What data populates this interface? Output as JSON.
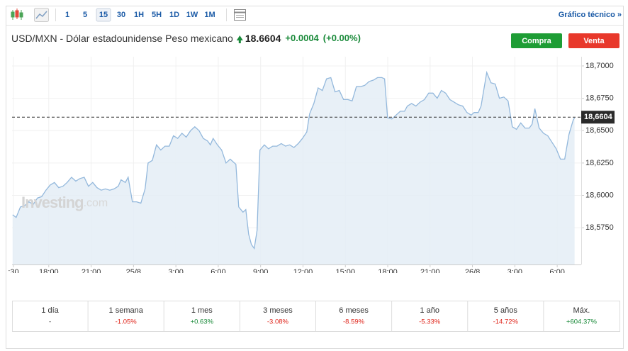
{
  "toolbar": {
    "intervals": [
      "1",
      "5",
      "15",
      "30",
      "1H",
      "5H",
      "1D",
      "1W",
      "1M"
    ],
    "selected_index": 2,
    "link": "Gráfico técnico »"
  },
  "header": {
    "instrument": "USD/MXN - Dólar estadounidense Peso mexicano",
    "price": "18.6604",
    "change": "+0.0004",
    "change_pct": "(+0.00%)",
    "buy": "Compra",
    "sell": "Venta"
  },
  "chart_data": {
    "type": "area",
    "watermark": [
      "Investing",
      ".com"
    ],
    "x": [
      15.44,
      15.69,
      15.99,
      16.29,
      16.59,
      16.9,
      17.2,
      17.5,
      17.8,
      18.1,
      18.4,
      18.7,
      19.0,
      19.3,
      19.61,
      19.91,
      20.21,
      20.51,
      20.81,
      21.11,
      21.41,
      21.71,
      22.01,
      22.32,
      22.62,
      22.92,
      23.12,
      23.42,
      23.62,
      23.92,
      24.22,
      24.52,
      24.82,
      25.03,
      25.33,
      25.63,
      25.93,
      26.23,
      26.53,
      26.83,
      27.13,
      27.43,
      27.73,
      28.04,
      28.34,
      28.64,
      28.94,
      29.24,
      29.44,
      29.64,
      29.94,
      30.24,
      30.55,
      30.85,
      31.05,
      31.25,
      31.45,
      31.75,
      31.95,
      32.15,
      32.35,
      32.55,
      32.75,
      32.95,
      33.26,
      33.56,
      33.86,
      34.16,
      34.46,
      34.76,
      35.06,
      35.36,
      35.66,
      35.96,
      36.27,
      36.47,
      36.77,
      37.07,
      37.37,
      37.67,
      37.97,
      38.27,
      38.57,
      38.87,
      39.18,
      39.48,
      39.78,
      40.08,
      40.38,
      40.68,
      40.98,
      41.28,
      41.58,
      41.78,
      41.99,
      42.29,
      42.59,
      42.89,
      43.19,
      43.39,
      43.69,
      43.99,
      44.29,
      44.6,
      44.9,
      45.2,
      45.5,
      45.8,
      46.1,
      46.4,
      46.7,
      47.0,
      47.31,
      47.61,
      47.91,
      48.11,
      48.41,
      48.61,
      48.81,
      49.01,
      49.31,
      49.61,
      49.91,
      50.22,
      50.52,
      50.82,
      51.12,
      51.42,
      51.72,
      52.02,
      52.22,
      52.42,
      52.72,
      53.03,
      53.33,
      53.63,
      53.93,
      54.23,
      54.53,
      54.83,
      55.13,
      55.23
    ],
    "values": [
      18.585,
      18.583,
      18.591,
      18.592,
      18.595,
      18.593,
      18.598,
      18.599,
      18.604,
      18.608,
      18.61,
      18.606,
      18.607,
      18.61,
      18.614,
      18.611,
      18.613,
      18.614,
      18.607,
      18.61,
      18.606,
      18.604,
      18.605,
      18.604,
      18.605,
      18.607,
      18.612,
      18.61,
      18.614,
      18.595,
      18.595,
      18.594,
      18.605,
      18.625,
      18.627,
      18.639,
      18.635,
      18.638,
      18.638,
      18.646,
      18.644,
      18.648,
      18.645,
      18.65,
      18.653,
      18.65,
      18.644,
      18.642,
      18.639,
      18.644,
      18.639,
      18.635,
      18.625,
      18.628,
      18.626,
      18.624,
      18.591,
      18.587,
      18.589,
      18.57,
      18.562,
      18.559,
      18.573,
      18.635,
      18.639,
      18.636,
      18.638,
      18.638,
      18.64,
      18.638,
      18.639,
      18.637,
      18.64,
      18.644,
      18.649,
      18.663,
      18.671,
      18.683,
      18.681,
      18.69,
      18.691,
      18.68,
      18.681,
      18.674,
      18.674,
      18.673,
      18.684,
      18.684,
      18.685,
      18.688,
      18.689,
      18.691,
      18.691,
      18.69,
      18.66,
      18.659,
      18.662,
      18.665,
      18.665,
      18.669,
      18.671,
      18.669,
      18.672,
      18.674,
      18.679,
      18.679,
      18.675,
      18.681,
      18.679,
      18.674,
      18.672,
      18.67,
      18.669,
      18.664,
      18.662,
      18.664,
      18.664,
      18.669,
      18.682,
      18.695,
      18.687,
      18.686,
      18.675,
      18.676,
      18.673,
      18.653,
      18.651,
      18.656,
      18.652,
      18.652,
      18.655,
      18.667,
      18.652,
      18.648,
      18.646,
      18.641,
      18.636,
      18.628,
      18.628,
      18.647,
      18.658,
      18.66
    ],
    "color": "#93b8dc",
    "fill_color": "#e4edf6",
    "last_label": {
      "value": 18.6604,
      "label": "18,6604"
    },
    "xlim": [
      15.4,
      55.7
    ],
    "ylim": [
      18.5466,
      18.7071
    ],
    "xticks": [
      {
        "value": 15.5,
        "label": ":30"
      },
      {
        "value": 18,
        "label": "18:00"
      },
      {
        "value": 21,
        "label": "21:00"
      },
      {
        "value": 24,
        "label": "25/8"
      },
      {
        "value": 27,
        "label": "3:00"
      },
      {
        "value": 30,
        "label": "6:00"
      },
      {
        "value": 33,
        "label": "9:00"
      },
      {
        "value": 36,
        "label": "12:00"
      },
      {
        "value": 39,
        "label": "15:00"
      },
      {
        "value": 42,
        "label": "18:00"
      },
      {
        "value": 45,
        "label": "21:00"
      },
      {
        "value": 48,
        "label": "26/8"
      },
      {
        "value": 51,
        "label": "3:00"
      },
      {
        "value": 54,
        "label": "6:00"
      }
    ],
    "yticks": [
      {
        "value": 18.575,
        "label": "18,5750"
      },
      {
        "value": 18.6,
        "label": "18,6000"
      },
      {
        "value": 18.625,
        "label": "18,6250"
      },
      {
        "value": 18.65,
        "label": "18,6500"
      },
      {
        "value": 18.675,
        "label": "18,6750"
      },
      {
        "value": 18.7,
        "label": "18,7000"
      }
    ],
    "grid": true
  },
  "performance": [
    {
      "period": "1 día",
      "change": "-"
    },
    {
      "period": "1 semana",
      "change": "-1.05%"
    },
    {
      "period": "1 mes",
      "change": "+0.63%"
    },
    {
      "period": "3 meses",
      "change": "-3.08%"
    },
    {
      "period": "6 meses",
      "change": "-8.59%"
    },
    {
      "period": "1 año",
      "change": "-5.33%"
    },
    {
      "period": "5 años",
      "change": "-14.72%"
    },
    {
      "period": "Máx.",
      "change": "+604.37%"
    }
  ]
}
